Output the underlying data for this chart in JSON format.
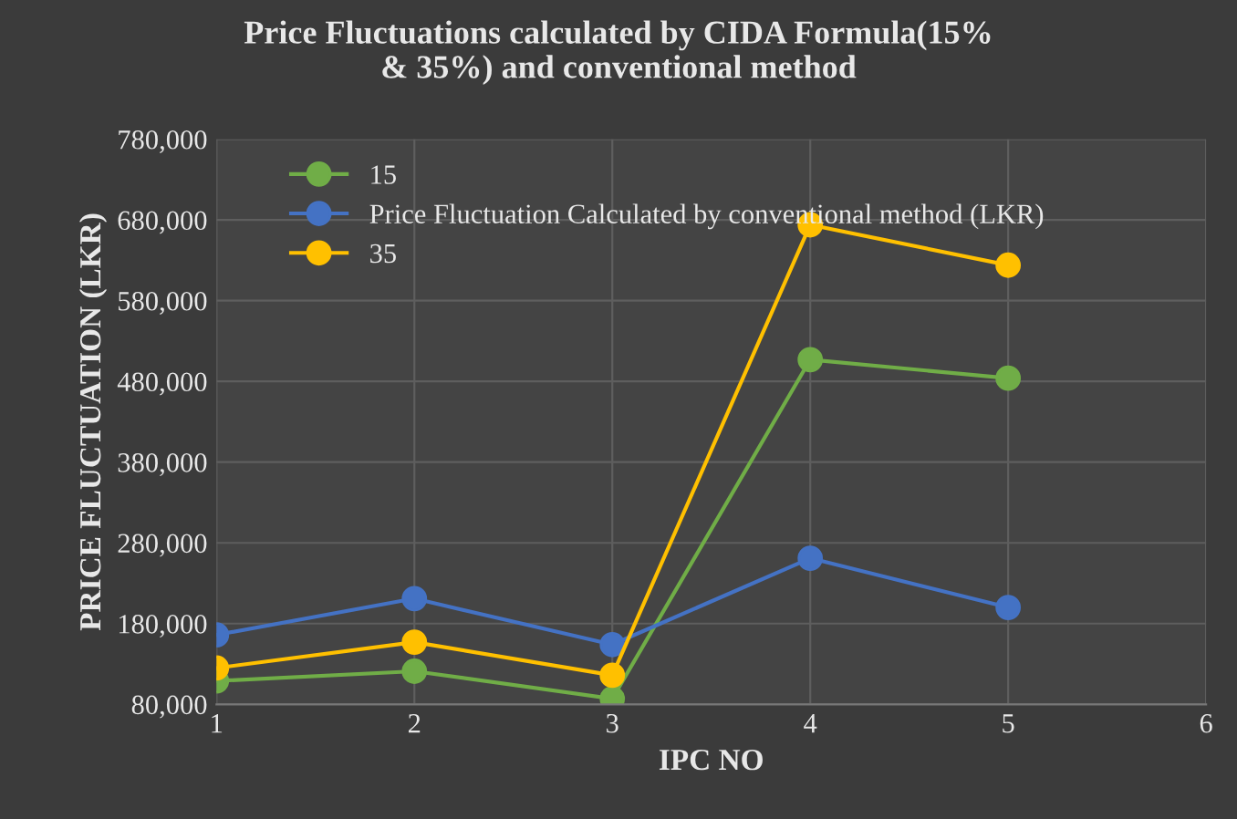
{
  "chart_data": {
    "type": "line",
    "title": "Price Fluctuations calculated by CIDA Formula(15%\n& 35%) and conventional method",
    "xlabel": "IPC NO",
    "ylabel": "PRICE FLUCTUATION (LKR)",
    "x": [
      1,
      2,
      3,
      4,
      5
    ],
    "series": [
      {
        "name": "15",
        "color": "#70ad47",
        "values": [
          109000,
          121000,
          87000,
          507000,
          484000
        ]
      },
      {
        "name": "Price Fluctuation Calculated by conventional method (LKR)",
        "color": "#4472c4",
        "values": [
          166000,
          211000,
          154000,
          261000,
          200000
        ]
      },
      {
        "name": "35",
        "color": "#ffc000",
        "values": [
          125000,
          157000,
          116000,
          674000,
          624000
        ]
      }
    ],
    "xlim": [
      1,
      6
    ],
    "xticks": [
      1,
      2,
      3,
      4,
      5,
      6
    ],
    "ylim": [
      80000,
      780000
    ],
    "yticks": [
      {
        "value": 80000,
        "label": "80,000"
      },
      {
        "value": 180000,
        "label": "180,000"
      },
      {
        "value": 280000,
        "label": "280,000"
      },
      {
        "value": 380000,
        "label": "380,000"
      },
      {
        "value": 480000,
        "label": "480,000"
      },
      {
        "value": 580000,
        "label": "580,000"
      },
      {
        "value": 680000,
        "label": "680,000"
      },
      {
        "value": 780000,
        "label": "780,000"
      }
    ],
    "grid": true,
    "legend": "top left",
    "marker": "circle",
    "line_style": "solid"
  }
}
